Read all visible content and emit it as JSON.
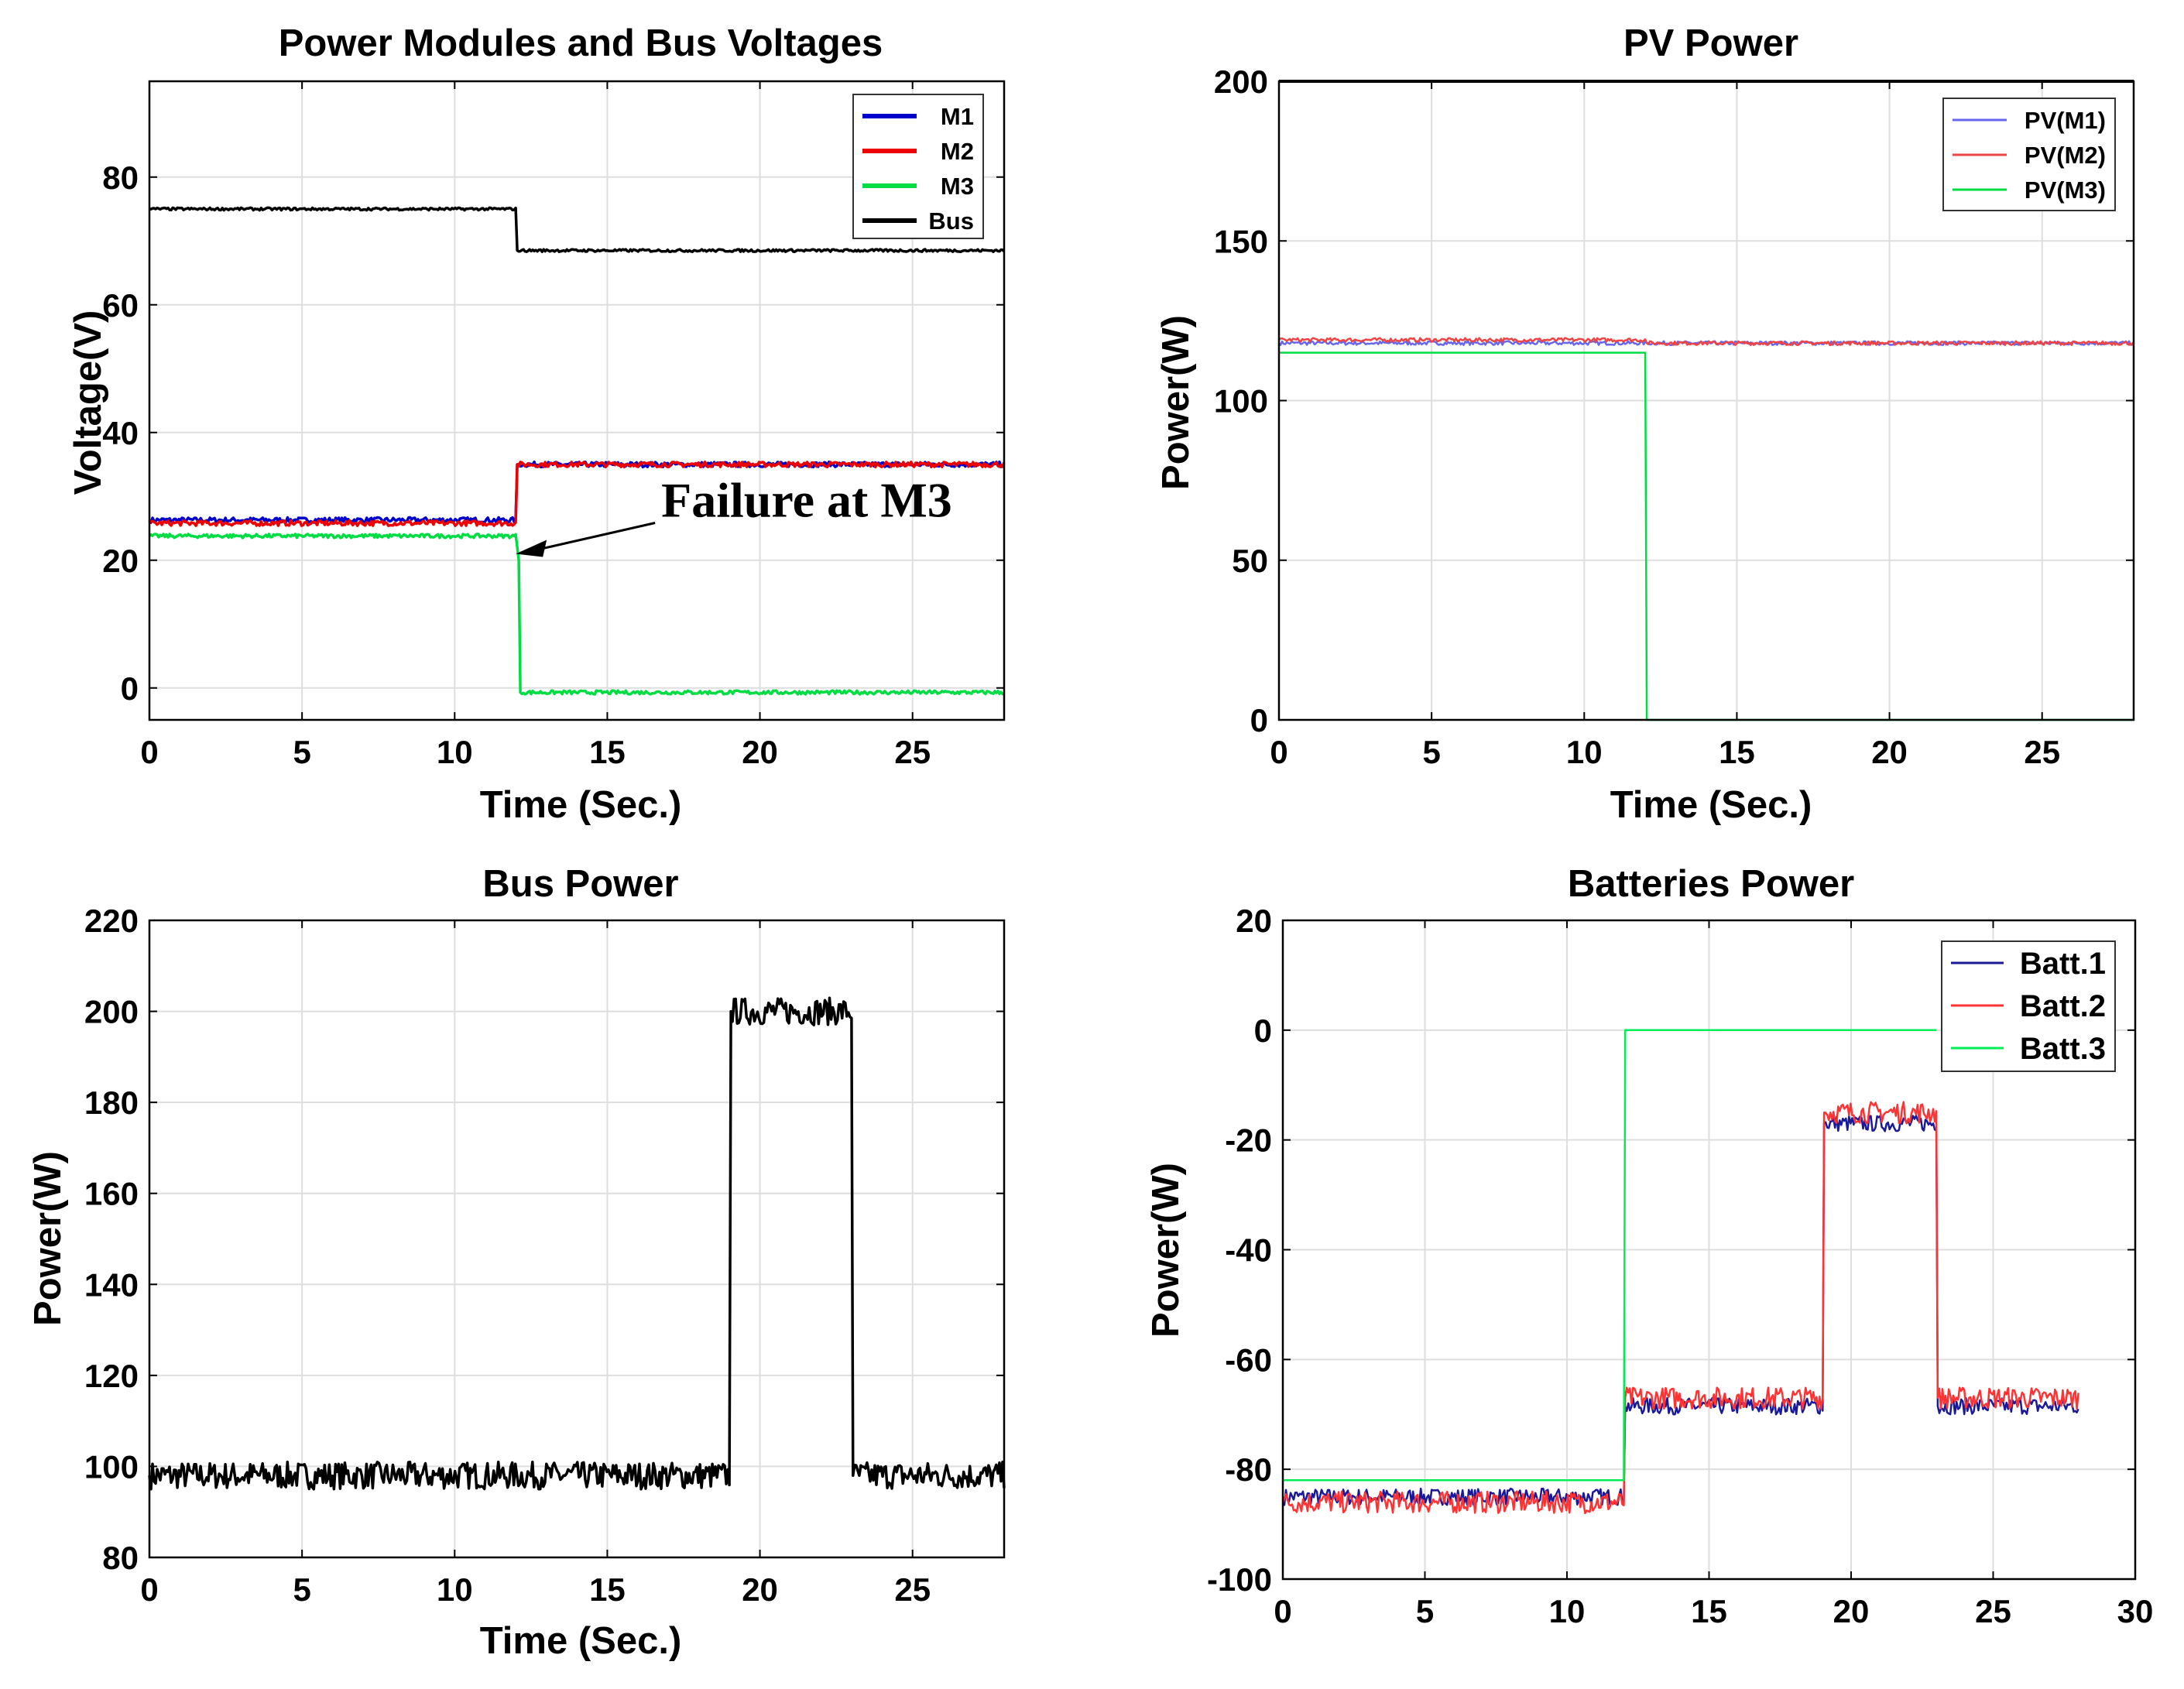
{
  "chart_data": [
    {
      "id": "voltages",
      "type": "line",
      "title": "Power Modules and Bus Voltages",
      "xlabel": "Time (Sec.)",
      "ylabel": "Voltage(V)",
      "xlim": [
        0,
        28
      ],
      "ylim": [
        -5,
        95
      ],
      "xticks": [
        0,
        5,
        10,
        15,
        20,
        25
      ],
      "yticks": [
        0,
        20,
        40,
        60,
        80
      ],
      "grid": true,
      "legend": "top-right",
      "series": [
        {
          "name": "M1",
          "color": "#0000cc",
          "points": [
            [
              0,
              26.3
            ],
            [
              12,
              26.3
            ],
            [
              12.05,
              35
            ],
            [
              28,
              35
            ]
          ]
        },
        {
          "name": "M2",
          "color": "#ee0000",
          "points": [
            [
              0,
              25.8
            ],
            [
              12,
              25.8
            ],
            [
              12.05,
              35
            ],
            [
              28,
              35
            ]
          ]
        },
        {
          "name": "M3",
          "color": "#00dd44",
          "points": [
            [
              0,
              23.8
            ],
            [
              12,
              23.8
            ],
            [
              12.1,
              20
            ],
            [
              12.15,
              -0.7
            ],
            [
              28,
              -0.7
            ]
          ]
        },
        {
          "name": "Bus",
          "color": "#000000",
          "points": [
            [
              0,
              75
            ],
            [
              12,
              75
            ],
            [
              12.05,
              68.5
            ],
            [
              28,
              68.5
            ]
          ]
        }
      ],
      "annotation": {
        "text": "Failure at M3",
        "x": 12,
        "y": 21
      }
    },
    {
      "id": "pv",
      "type": "line",
      "title": "PV Power",
      "xlabel": "Time (Sec.)",
      "ylabel": "Power(W)",
      "xlim": [
        0,
        28
      ],
      "ylim": [
        0,
        200
      ],
      "xticks": [
        0,
        5,
        10,
        15,
        20,
        25
      ],
      "yticks": [
        0,
        50,
        100,
        150,
        200
      ],
      "grid": true,
      "legend": "top-right",
      "series": [
        {
          "name": "PV(M1)",
          "color": "#6666ee",
          "points": [
            [
              0,
              118
            ],
            [
              12,
              118
            ],
            [
              12.05,
              118
            ],
            [
              28,
              118
            ]
          ]
        },
        {
          "name": "PV(M2)",
          "color": "#ee4444",
          "points": [
            [
              0,
              119
            ],
            [
              12,
              119
            ],
            [
              12.05,
              118
            ],
            [
              28,
              118
            ]
          ]
        },
        {
          "name": "PV(M3)",
          "color": "#00dd44",
          "points": [
            [
              0,
              115
            ],
            [
              12,
              115
            ],
            [
              12.05,
              0
            ],
            [
              28,
              0
            ]
          ]
        }
      ]
    },
    {
      "id": "bus",
      "type": "line",
      "title": "Bus Power",
      "xlabel": "Time (Sec.)",
      "ylabel": "Power(W)",
      "xlim": [
        0,
        28
      ],
      "ylim": [
        80,
        220
      ],
      "xticks": [
        0,
        5,
        10,
        15,
        20,
        25
      ],
      "yticks": [
        80,
        100,
        120,
        140,
        160,
        180,
        200,
        220
      ],
      "grid": true,
      "series": [
        {
          "name": "Bus",
          "color": "#000000",
          "points": [
            [
              0,
              98
            ],
            [
              19,
              98
            ],
            [
              19.05,
              200
            ],
            [
              23,
              200
            ],
            [
              23.05,
              98
            ],
            [
              28,
              98
            ]
          ]
        }
      ]
    },
    {
      "id": "batt",
      "type": "line",
      "title": "Batteries Power",
      "xlabel": "",
      "ylabel": "Power(W)",
      "xlim": [
        0,
        30
      ],
      "ylim": [
        -100,
        20
      ],
      "xticks": [
        0,
        5,
        10,
        15,
        20,
        25,
        30
      ],
      "yticks": [
        -100,
        -80,
        -60,
        -40,
        -20,
        0,
        20
      ],
      "grid": true,
      "legend": "top-right",
      "series": [
        {
          "name": "Batt.1",
          "color": "#1a1a99",
          "points": [
            [
              0,
              -85
            ],
            [
              12,
              -85
            ],
            [
              12.05,
              -68.5
            ],
            [
              19,
              -68.5
            ],
            [
              19.05,
              -17
            ],
            [
              23,
              -17
            ],
            [
              23.05,
              -68.5
            ],
            [
              28,
              -68.5
            ]
          ]
        },
        {
          "name": "Batt.2",
          "color": "#ff3333",
          "points": [
            [
              0,
              -86
            ],
            [
              12,
              -86
            ],
            [
              12.05,
              -67
            ],
            [
              19,
              -67
            ],
            [
              19.05,
              -15
            ],
            [
              23,
              -15
            ],
            [
              23.05,
              -67
            ],
            [
              28,
              -67
            ]
          ]
        },
        {
          "name": "Batt.3",
          "color": "#00ee55",
          "points": [
            [
              0,
              -82
            ],
            [
              12,
              -82
            ],
            [
              12.05,
              0
            ],
            [
              23,
              0
            ]
          ]
        }
      ]
    }
  ]
}
